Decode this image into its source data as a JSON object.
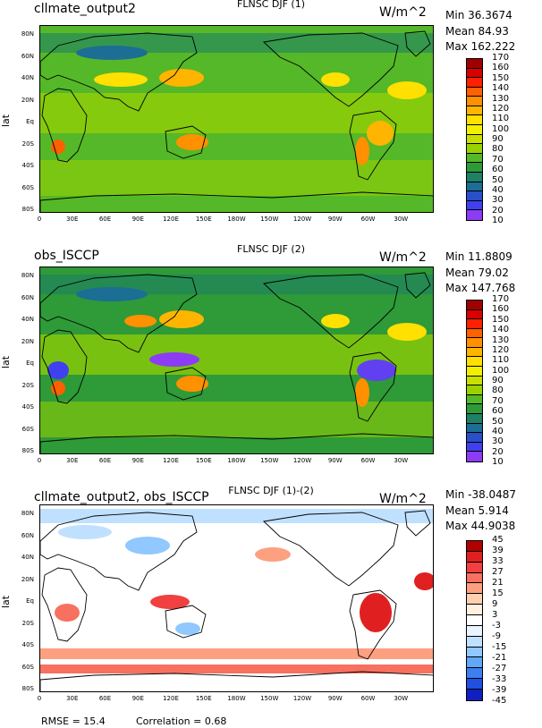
{
  "panels": [
    {
      "name": "cllmate_output2",
      "center_title": "FLNSC DJF (1)",
      "units": "W/m^2",
      "min": "Min 36.3674",
      "mean": "Mean 84.93",
      "max": "Max 162.222",
      "colorbar_labels": [
        "170",
        "160",
        "150",
        "140",
        "130",
        "120",
        "110",
        "100",
        "90",
        "80",
        "70",
        "60",
        "50",
        "40",
        "30",
        "20",
        "10"
      ],
      "colorbar_colors": [
        "#a00000",
        "#d80000",
        "#ff2000",
        "#ff6000",
        "#ff9000",
        "#ffb400",
        "#ffe000",
        "#f2f000",
        "#c8e000",
        "#9ad200",
        "#55b828",
        "#2e9a38",
        "#1e8064",
        "#1c6e94",
        "#2850c8",
        "#4040f0",
        "#8c3cf5"
      ],
      "background": "#55b828"
    },
    {
      "name": "obs_ISCCP",
      "center_title": "FLNSC DJF (2)",
      "units": "W/m^2",
      "min": "Min 11.8809",
      "mean": "Mean 79.02",
      "max": "Max 147.768",
      "colorbar_labels": [
        "170",
        "160",
        "150",
        "140",
        "130",
        "120",
        "110",
        "100",
        "90",
        "80",
        "70",
        "60",
        "50",
        "40",
        "30",
        "20",
        "10"
      ],
      "colorbar_colors": [
        "#a00000",
        "#d80000",
        "#ff2000",
        "#ff6000",
        "#ff9000",
        "#ffb400",
        "#ffe000",
        "#f2f000",
        "#c8e000",
        "#9ad200",
        "#55b828",
        "#2e9a38",
        "#1e8064",
        "#1c6e94",
        "#2850c8",
        "#4040f0",
        "#8c3cf5"
      ],
      "background": "#2e9a38"
    },
    {
      "name": "cllmate_output2, obs_ISCCP",
      "center_title": "FLNSC DJF (1)-(2)",
      "units": "W/m^2",
      "min": "Min -38.0487",
      "mean": "Mean 5.914",
      "max": "Max 44.9038",
      "colorbar_labels": [
        "45",
        "39",
        "33",
        "27",
        "21",
        "15",
        "9",
        "3",
        "-3",
        "-9",
        "-15",
        "-21",
        "-27",
        "-33",
        "-39",
        "-45"
      ],
      "colorbar_colors": [
        "#b00000",
        "#e02020",
        "#f04040",
        "#f87060",
        "#fca080",
        "#fed0b0",
        "#fff0e0",
        "#ffffff",
        "#e8f4ff",
        "#c0e0ff",
        "#90c8ff",
        "#60a8f8",
        "#3c80f0",
        "#2050e0",
        "#1020c0"
      ],
      "background": "#ffffff"
    }
  ],
  "axis": {
    "ylabel": "lat",
    "lat_ticks": [
      "80N",
      "60N",
      "40N",
      "20N",
      "Eq",
      "20S",
      "40S",
      "60S",
      "80S"
    ],
    "lon_ticks": [
      "0",
      "30E",
      "60E",
      "90E",
      "120E",
      "150E",
      "180W",
      "150W",
      "120W",
      "90W",
      "60W",
      "30W"
    ]
  },
  "footer": {
    "rmse": "RMSE = 15.4",
    "correlation": "Correlation = 0.68"
  }
}
